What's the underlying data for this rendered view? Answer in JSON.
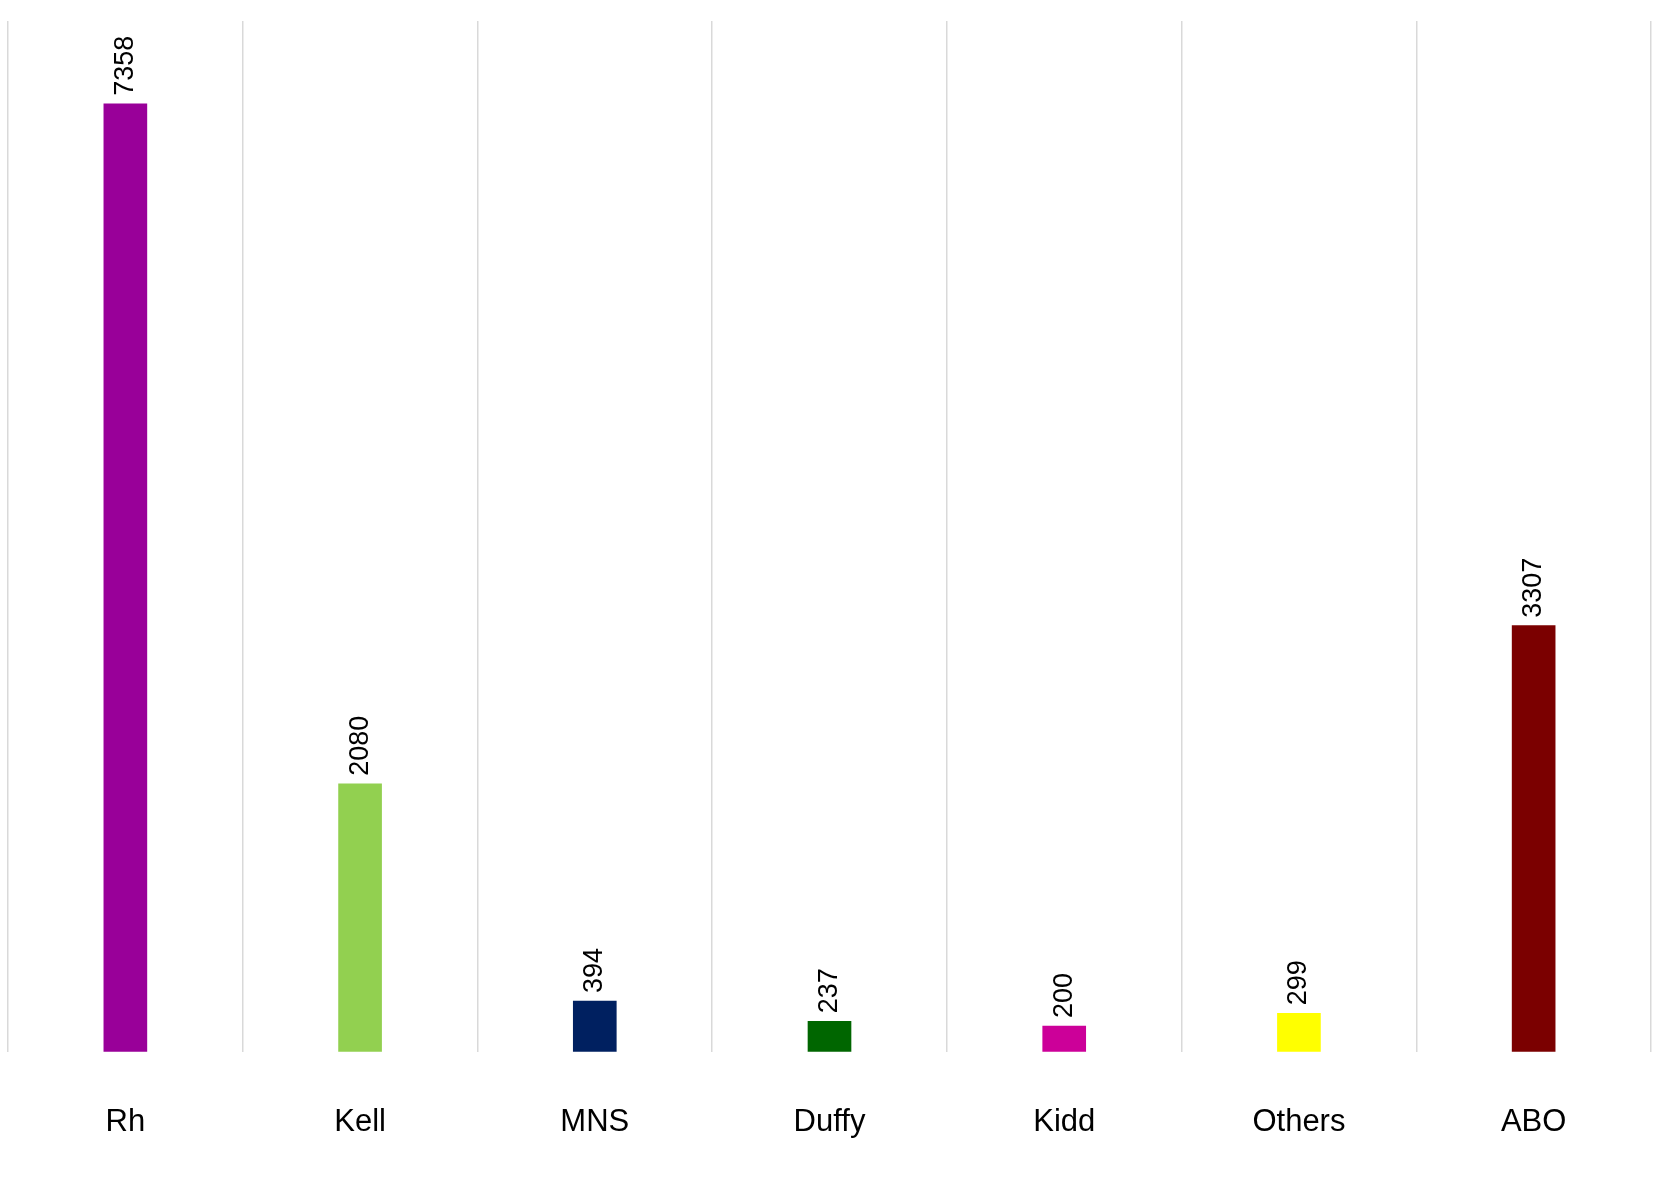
{
  "chart_data": {
    "type": "bar",
    "categories": [
      "Rh",
      "Kell",
      "MNS",
      "Duffy",
      "Kidd",
      "Others",
      "ABO"
    ],
    "values": [
      7358,
      2080,
      394,
      237,
      200,
      299,
      3307
    ],
    "colors": [
      "#990099",
      "#92d050",
      "#002060",
      "#006600",
      "#cc0099",
      "#ffff00",
      "#7b0000"
    ],
    "ylim": [
      0,
      8000
    ],
    "grid": "x",
    "tick_labels": "x",
    "data_labels": true,
    "legend": false
  }
}
